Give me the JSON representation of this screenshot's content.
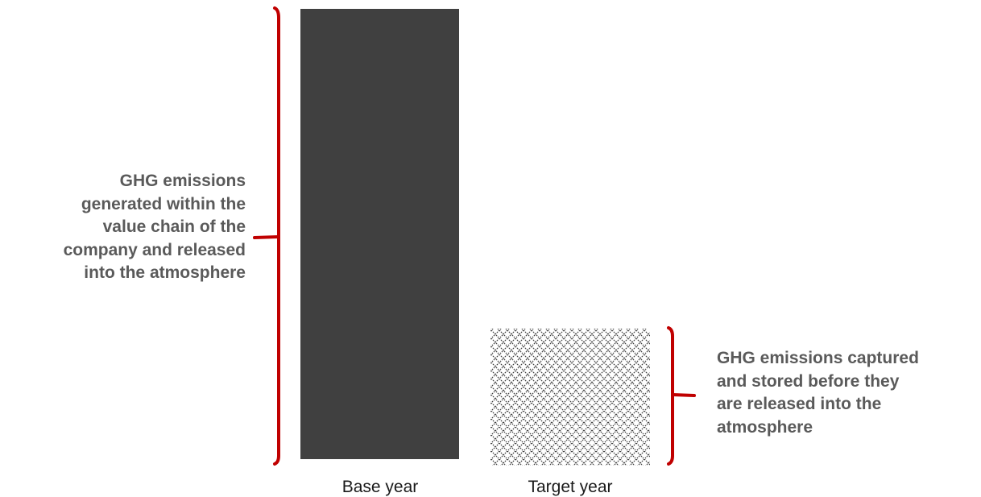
{
  "diagram": {
    "left_annotation": "GHG  emissions\ngenerated within the\nvalue chain of the\ncompany and released\ninto the atmosphere",
    "right_annotation": "GHG  emissions captured\nand stored before they\nare released into the\natmosphere",
    "bars": [
      {
        "label": "Base year",
        "style": "solid",
        "color": "#404040"
      },
      {
        "label": "Target year",
        "style": "crosshatch",
        "color": "#404040"
      }
    ],
    "bracket_color": "#c00000"
  }
}
